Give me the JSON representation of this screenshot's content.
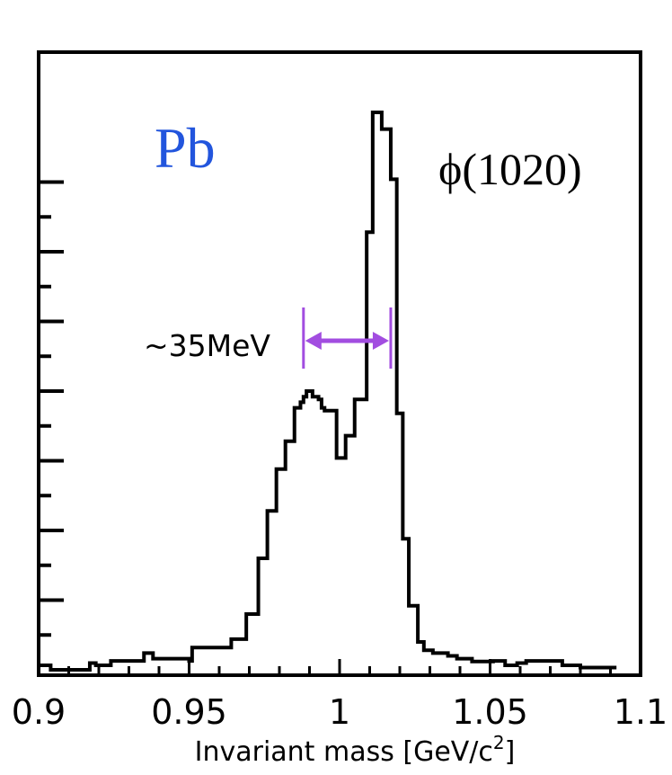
{
  "chart_data": {
    "type": "histogram",
    "xlabel": "Invariant mass [GeV/c",
    "xlabel_sup": "2",
    "xlabel_end": "]",
    "ylabel": "",
    "xlim": [
      0.9,
      1.1
    ],
    "ylim": [
      0,
      100
    ],
    "x_ticks": [
      0.9,
      0.95,
      1.0,
      1.05,
      1.1
    ],
    "x_tick_labels": [
      "0.9",
      "0.95",
      "1",
      "1.05",
      "1.1"
    ],
    "y_tick_labels_shown": false,
    "y_major_ticks": [
      12.5,
      25,
      37.5,
      50,
      62.5,
      75,
      87.5
    ],
    "grid": false,
    "bin_edges": [
      0.9,
      0.904,
      0.917,
      0.919,
      0.924,
      0.935,
      0.938,
      0.95,
      0.951,
      0.956,
      0.964,
      0.969,
      0.973,
      0.976,
      0.979,
      0.982,
      0.985,
      0.987,
      0.988,
      0.989,
      0.991,
      0.993,
      0.994,
      0.995,
      0.999,
      1.002,
      1.005,
      1.009,
      1.011,
      1.014,
      1.017,
      1.019,
      1.021,
      1.023,
      1.026,
      1.028,
      1.031,
      1.034,
      1.036,
      1.039,
      1.044,
      1.047,
      1.051,
      1.055,
      1.059,
      1.062,
      1.064,
      1.066,
      1.074,
      1.08,
      1.092
    ],
    "bin_values": [
      0.8,
      0,
      1.2,
      0.8,
      1.6,
      3.0,
      2.0,
      1.6,
      4.0,
      4.0,
      5.5,
      10.0,
      20.0,
      28.5,
      36.0,
      41.0,
      47.0,
      48.0,
      49.0,
      50.0,
      49.0,
      48.5,
      47.0,
      46.5,
      38.0,
      42.0,
      48.5,
      78.5,
      100.0,
      97.0,
      88.0,
      46.0,
      23.5,
      11.5,
      5.0,
      3.5,
      3.0,
      3.0,
      2.5,
      2.0,
      1.5,
      1.5,
      1.6,
      0.8,
      1.2,
      1.6,
      1.6,
      1.6,
      0.8,
      0.4
    ],
    "annotations": {
      "element": "Pb",
      "element_color": "#2255dd",
      "particle": "ϕ(1020)",
      "width_label": "~35MeV",
      "width_arrow_from": 0.988,
      "width_arrow_to": 1.017,
      "arrow_color": "#a24de0"
    }
  }
}
